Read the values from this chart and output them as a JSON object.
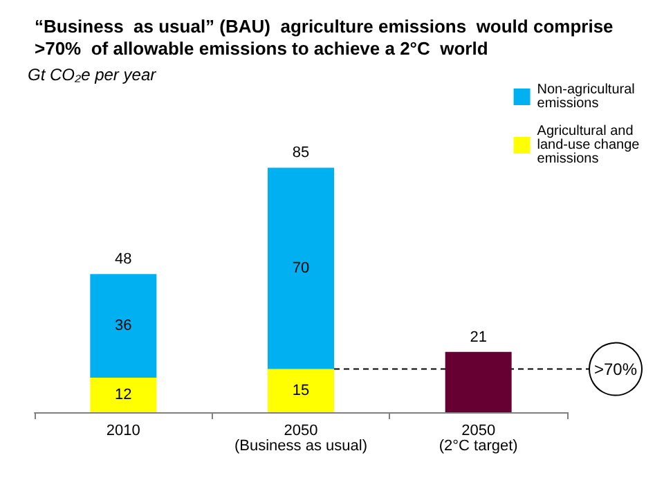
{
  "chart_data": {
    "type": "bar",
    "title": "“Business  as usual” (BAU)  agriculture emissions  would comprise >70%  of allowable emissions to achieve a 2°C  world",
    "annotations": [
      "Gt CO₂e per year",
      ">70%"
    ],
    "categories": [
      "2010",
      "2050\n(Business as usual)",
      "2050\n(2°C target)"
    ],
    "stacked": true,
    "series": [
      {
        "name": "Agricultural and land-use change emissions",
        "color": "#ffff00",
        "values": [
          12,
          15,
          null
        ],
        "value_labels": [
          "12",
          "15",
          null
        ]
      },
      {
        "name": "Non-agricultural emissions",
        "color": "#00b0f0",
        "values": [
          36,
          70,
          null
        ],
        "value_labels": [
          "36",
          "70",
          null
        ]
      },
      {
        "color": "#660033",
        "values": [
          null,
          null,
          21
        ]
      }
    ],
    "totals": [
      "48",
      "85",
      "21"
    ],
    "ref_lines": [
      {
        "axis": "y",
        "value": 15,
        "line_style": "dashed",
        "color": "#000000"
      }
    ],
    "legend": "top right",
    "grid": false,
    "tick_labels": "x"
  }
}
